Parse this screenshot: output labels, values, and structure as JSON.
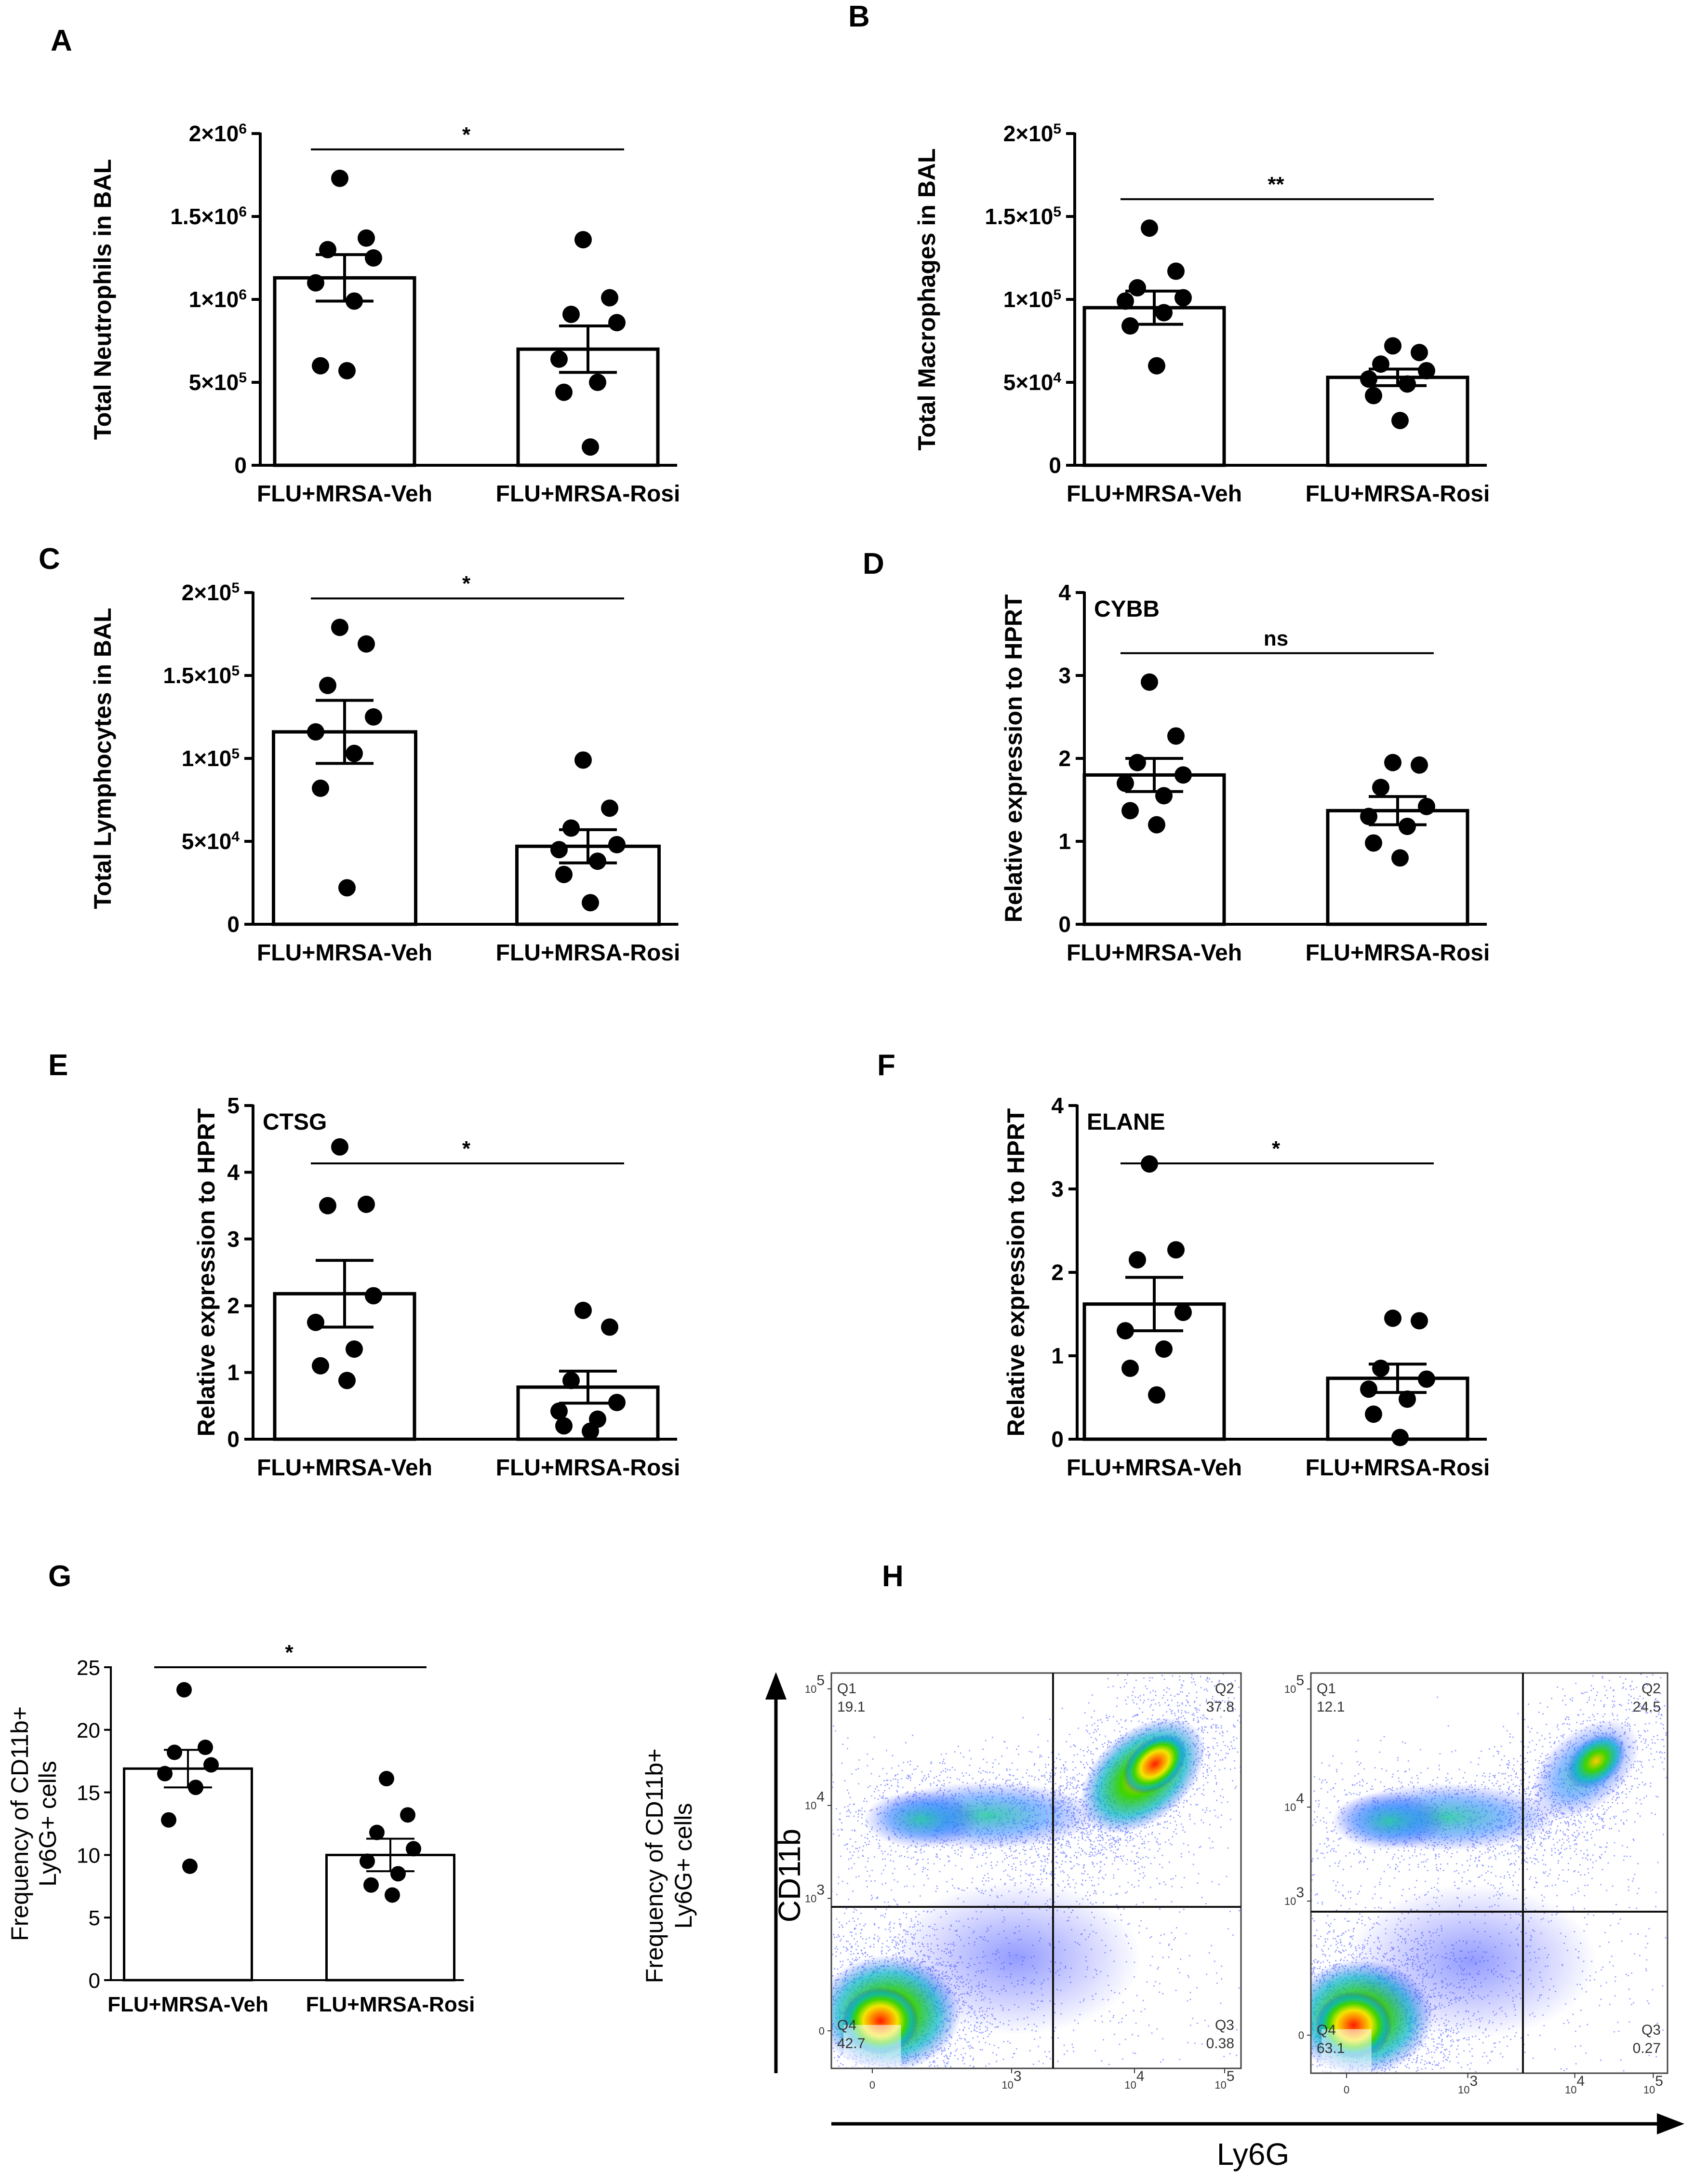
{
  "figure": {
    "categories": [
      "FLU+MRSA-Veh",
      "FLU+MRSA-Rosi"
    ]
  },
  "chart_data": [
    {
      "id": "A",
      "type": "bar",
      "panel_label": "A",
      "ylabel": "Total Neutrophils in BAL",
      "ylim": [
        0,
        2000000
      ],
      "ticks": [
        0,
        500000,
        1000000,
        1500000,
        2000000
      ],
      "tick_labels": [
        {
          "m": "0",
          "e": ""
        },
        {
          "m": "5×10",
          "e": "5"
        },
        {
          "m": "1×10",
          "e": "6"
        },
        {
          "m": "1.5×10",
          "e": "6"
        },
        {
          "m": "2×10",
          "e": "6"
        }
      ],
      "categories": [
        "FLU+MRSA-Veh",
        "FLU+MRSA-Rosi"
      ],
      "means": [
        1130000,
        700000
      ],
      "sem": [
        140000,
        140000
      ],
      "points": [
        [
          1730000,
          1370000,
          1300000,
          1250000,
          1100000,
          990000,
          600000,
          570000
        ],
        [
          1360000,
          1010000,
          910000,
          860000,
          640000,
          500000,
          440000,
          110000
        ]
      ],
      "significance": "*",
      "gene": ""
    },
    {
      "id": "B",
      "type": "bar",
      "panel_label": "B",
      "ylabel": "Total Macrophages in BAL",
      "ylim": [
        0,
        200000
      ],
      "ticks": [
        0,
        50000,
        100000,
        150000,
        200000
      ],
      "tick_labels": [
        {
          "m": "0",
          "e": ""
        },
        {
          "m": "5×10",
          "e": "4"
        },
        {
          "m": "1×10",
          "e": "5"
        },
        {
          "m": "1.5×10",
          "e": "5"
        },
        {
          "m": "2×10",
          "e": "5"
        }
      ],
      "categories": [
        "FLU+MRSA-Veh",
        "FLU+MRSA-Rosi"
      ],
      "means": [
        95000,
        53000
      ],
      "sem": [
        10000,
        5000
      ],
      "points": [
        [
          143000,
          117000,
          107000,
          101000,
          99000,
          92000,
          84000,
          60000
        ],
        [
          72000,
          68000,
          61000,
          57000,
          52000,
          49000,
          42000,
          27000
        ]
      ],
      "significance": "**",
      "gene": ""
    },
    {
      "id": "C",
      "type": "bar",
      "panel_label": "C",
      "ylabel": "Total Lymphocytes in BAL",
      "ylim": [
        0,
        200000
      ],
      "ticks": [
        0,
        50000,
        100000,
        150000,
        200000
      ],
      "tick_labels": [
        {
          "m": "0",
          "e": ""
        },
        {
          "m": "5×10",
          "e": "4"
        },
        {
          "m": "1×10",
          "e": "5"
        },
        {
          "m": "1.5×10",
          "e": "5"
        },
        {
          "m": "2×10",
          "e": "5"
        }
      ],
      "categories": [
        "FLU+MRSA-Veh",
        "FLU+MRSA-Rosi"
      ],
      "means": [
        116000,
        47000
      ],
      "sem": [
        19000,
        10000
      ],
      "points": [
        [
          179000,
          169000,
          144000,
          125000,
          116000,
          103000,
          82000,
          22000
        ],
        [
          99000,
          70000,
          58000,
          48000,
          45000,
          38000,
          30000,
          13000
        ]
      ],
      "significance": "*",
      "gene": ""
    },
    {
      "id": "D",
      "type": "bar",
      "panel_label": "D",
      "ylabel": "Relative expression to HPRT",
      "ylim": [
        0,
        4
      ],
      "ticks": [
        0,
        1,
        2,
        3,
        4
      ],
      "tick_labels": [
        {
          "m": "0",
          "e": ""
        },
        {
          "m": "1",
          "e": ""
        },
        {
          "m": "2",
          "e": ""
        },
        {
          "m": "3",
          "e": ""
        },
        {
          "m": "4",
          "e": ""
        }
      ],
      "categories": [
        "FLU+MRSA-Veh",
        "FLU+MRSA-Rosi"
      ],
      "means": [
        1.8,
        1.37
      ],
      "sem": [
        0.2,
        0.17
      ],
      "points": [
        [
          2.92,
          2.27,
          1.95,
          1.8,
          1.7,
          1.55,
          1.37,
          1.2
        ],
        [
          1.95,
          1.92,
          1.65,
          1.42,
          1.3,
          1.18,
          0.98,
          0.8
        ]
      ],
      "significance": "ns",
      "gene": "CYBB"
    },
    {
      "id": "E",
      "type": "bar",
      "panel_label": "E",
      "ylabel": "Relative expression to HPRT",
      "ylim": [
        0,
        5
      ],
      "ticks": [
        0,
        1,
        2,
        3,
        4,
        5
      ],
      "tick_labels": [
        {
          "m": "0",
          "e": ""
        },
        {
          "m": "1",
          "e": ""
        },
        {
          "m": "2",
          "e": ""
        },
        {
          "m": "3",
          "e": ""
        },
        {
          "m": "4",
          "e": ""
        },
        {
          "m": "5",
          "e": ""
        }
      ],
      "categories": [
        "FLU+MRSA-Veh",
        "FLU+MRSA-Rosi"
      ],
      "means": [
        2.18,
        0.78
      ],
      "sem": [
        0.5,
        0.24
      ],
      "points": [
        [
          4.38,
          3.52,
          3.5,
          2.15,
          1.75,
          1.35,
          1.1,
          0.88
        ],
        [
          1.93,
          1.68,
          0.88,
          0.55,
          0.42,
          0.3,
          0.2,
          0.12
        ]
      ],
      "significance": "*",
      "gene": "CTSG"
    },
    {
      "id": "F",
      "type": "bar",
      "panel_label": "F",
      "ylabel": "Relative expression to HPRT",
      "ylim": [
        0,
        4
      ],
      "ticks": [
        0,
        1,
        2,
        3,
        4
      ],
      "tick_labels": [
        {
          "m": "0",
          "e": ""
        },
        {
          "m": "1",
          "e": ""
        },
        {
          "m": "2",
          "e": ""
        },
        {
          "m": "3",
          "e": ""
        },
        {
          "m": "4",
          "e": ""
        }
      ],
      "categories": [
        "FLU+MRSA-Veh",
        "FLU+MRSA-Rosi"
      ],
      "means": [
        1.62,
        0.73
      ],
      "sem": [
        0.32,
        0.17
      ],
      "points": [
        [
          3.3,
          2.27,
          2.15,
          1.52,
          1.3,
          1.08,
          0.85,
          0.53
        ],
        [
          1.45,
          1.42,
          0.85,
          0.72,
          0.6,
          0.48,
          0.3,
          0.02
        ]
      ],
      "significance": "*",
      "gene": "ELANE"
    },
    {
      "id": "G",
      "type": "bar",
      "panel_label": "G",
      "ylabel": "Frequency of CD11b+ Ly6G+ cells",
      "ylabel_lines": [
        "Frequency of CD11b+",
        "Ly6G+ cells"
      ],
      "ylim": [
        0,
        25
      ],
      "ticks": [
        0,
        5,
        10,
        15,
        20,
        25
      ],
      "tick_labels": [
        {
          "m": "0",
          "e": ""
        },
        {
          "m": "5",
          "e": ""
        },
        {
          "m": "10",
          "e": ""
        },
        {
          "m": "15",
          "e": ""
        },
        {
          "m": "20",
          "e": ""
        },
        {
          "m": "25",
          "e": ""
        }
      ],
      "categories": [
        "FLU+MRSA-Veh",
        "FLU+MRSA-Rosi"
      ],
      "means": [
        16.9,
        10.0
      ],
      "sem": [
        1.5,
        1.3
      ],
      "points": [
        [
          23.2,
          18.6,
          18.2,
          17.2,
          16.5,
          15.4,
          12.8,
          9.1
        ],
        [
          16.1,
          13.2,
          11.8,
          10.5,
          9.5,
          8.5,
          7.6,
          6.8
        ]
      ],
      "significance": "*",
      "gene": ""
    }
  ],
  "flow": {
    "panel_label": "H",
    "ylabel_lines": [
      "Frequency of CD11b+",
      "Ly6G+ cells"
    ],
    "y_axis_label": "CD11b",
    "x_axis_label": "Ly6G",
    "axis_ticks": [
      {
        "m": "10",
        "e": "5"
      },
      {
        "m": "10",
        "e": "4"
      },
      {
        "m": "10",
        "e": "3"
      },
      {
        "m": "0",
        "e": ""
      }
    ],
    "x_axis_ticks": [
      {
        "m": "0",
        "e": ""
      },
      {
        "m": "10",
        "e": "3"
      },
      {
        "m": "10",
        "e": "4"
      },
      {
        "m": "10",
        "e": "5"
      }
    ],
    "plots": [
      {
        "quadrants": [
          {
            "name": "Q1",
            "value": "19.1"
          },
          {
            "name": "Q2",
            "value": "37.8"
          },
          {
            "name": "Q3",
            "value": "0.38"
          },
          {
            "name": "Q4",
            "value": "42.7"
          }
        ]
      },
      {
        "quadrants": [
          {
            "name": "Q1",
            "value": "12.1"
          },
          {
            "name": "Q2",
            "value": "24.5"
          },
          {
            "name": "Q3",
            "value": "0.27"
          },
          {
            "name": "Q4",
            "value": "63.1"
          }
        ]
      }
    ]
  }
}
